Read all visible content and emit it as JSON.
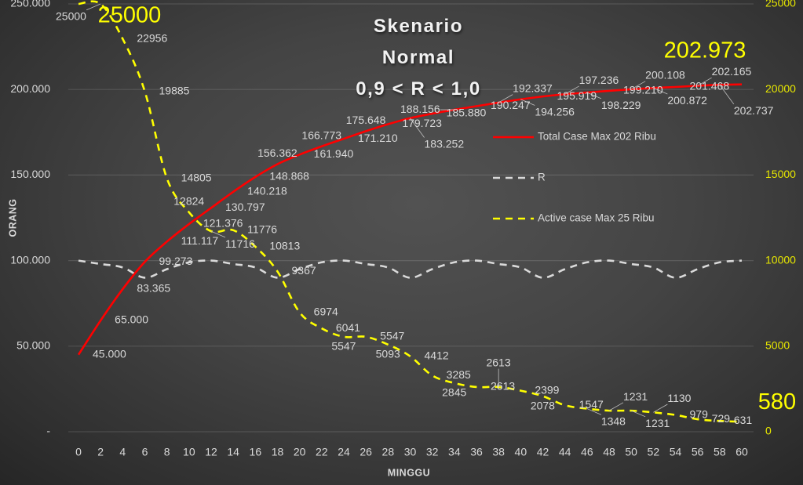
{
  "chart_data": {
    "type": "line",
    "title": [
      "Skenario",
      "Normal",
      "0,9 < R < 1,0"
    ],
    "xlabel": "MINGGU",
    "ylabel": "ORANG",
    "x": [
      0,
      2,
      4,
      6,
      8,
      10,
      12,
      14,
      16,
      18,
      20,
      22,
      24,
      26,
      28,
      30,
      32,
      34,
      36,
      38,
      40,
      42,
      44,
      46,
      48,
      50,
      52,
      54,
      56,
      58,
      60
    ],
    "xticks": [
      "0",
      "2",
      "4",
      "6",
      "8",
      "10",
      "12",
      "14",
      "16",
      "18",
      "20",
      "22",
      "24",
      "26",
      "28",
      "30",
      "32",
      "34",
      "36",
      "38",
      "40",
      "42",
      "44",
      "46",
      "48",
      "50",
      "52",
      "54",
      "56",
      "58",
      "60"
    ],
    "xlim": [
      0,
      60
    ],
    "ylim_left": [
      0,
      250000
    ],
    "ylim_right": [
      0,
      25000
    ],
    "yticks_left": [
      {
        "value": 0,
        "label": "-"
      },
      {
        "value": 50000,
        "label": "50.000"
      },
      {
        "value": 100000,
        "label": "100.000"
      },
      {
        "value": 150000,
        "label": "150.000"
      },
      {
        "value": 200000,
        "label": "200.000"
      },
      {
        "value": 250000,
        "label": "250.000"
      }
    ],
    "yticks_right": [
      {
        "value": 0,
        "label": "0"
      },
      {
        "value": 5000,
        "label": "5000"
      },
      {
        "value": 10000,
        "label": "10000"
      },
      {
        "value": 15000,
        "label": "15000"
      },
      {
        "value": 20000,
        "label": "20000"
      },
      {
        "value": 25000,
        "label": "25000"
      }
    ],
    "grid": true,
    "legend_position": "right-center",
    "series": [
      {
        "name": "Total Case Max 202 Ribu",
        "axis": "left",
        "color": "#ff0000",
        "style": "solid",
        "values": [
          45000,
          65000,
          83365,
          99273,
          111117,
          121376,
          130797,
          140218,
          148868,
          156362,
          161940,
          166773,
          171210,
          175648,
          179723,
          183252,
          185880,
          188156,
          190247,
          192337,
          194256,
          195919,
          197236,
          198229,
          199210,
          200108,
          200872,
          201468,
          202165,
          202737,
          202973
        ],
        "labels": [
          "45.000",
          "65.000",
          "83.365",
          "99.273",
          "111.117",
          "121.376",
          "130.797",
          "140.218",
          "148.868",
          "156.362",
          "161.940",
          "166.773",
          "171.210",
          "175.648",
          "179.723",
          "183.252",
          "185.880",
          "188.156",
          "190.247",
          "192.337",
          "194.256",
          "195.919",
          "197.236",
          "198.229",
          "199.210",
          "200.108",
          "200.872",
          "201.468",
          "202.165",
          "202.737",
          null
        ]
      },
      {
        "name": "R",
        "axis": "left",
        "scale": 100000,
        "color": "#d9d9d9",
        "style": "dashed",
        "values": [
          1.0,
          0.98,
          0.96,
          0.9,
          0.95,
          0.99,
          1.0,
          0.98,
          0.96,
          0.9,
          0.95,
          0.99,
          1.0,
          0.98,
          0.96,
          0.9,
          0.95,
          0.99,
          1.0,
          0.98,
          0.96,
          0.9,
          0.95,
          0.99,
          1.0,
          0.98,
          0.96,
          0.9,
          0.95,
          0.99,
          1.0
        ]
      },
      {
        "name": "Active case Max 25 Ribu",
        "axis": "right",
        "color": "#ffff00",
        "style": "dashed",
        "values": [
          25000,
          25000,
          22956,
          19885,
          14805,
          12824,
          11716,
          11776,
          10813,
          9367,
          6974,
          6041,
          5547,
          5547,
          5093,
          4412,
          3285,
          2845,
          2613,
          2613,
          2399,
          2078,
          1547,
          1348,
          1231,
          1231,
          1130,
          979,
          729,
          631,
          580
        ],
        "labels": [
          null,
          "25000",
          "22956",
          "19885",
          "14805",
          "12824",
          "11716",
          "11776",
          "10813",
          "9367",
          "6974",
          "6041",
          "5547",
          "5547",
          "5093",
          "4412",
          "3285",
          "2845",
          "2613",
          "2613",
          "2399",
          "2078",
          "1547",
          "1348",
          "1231",
          "1231",
          "1130",
          "979",
          "729",
          "631",
          null
        ]
      }
    ],
    "callouts": [
      {
        "series": 2,
        "index": 0,
        "label": "25000"
      },
      {
        "series": 0,
        "index": 30,
        "label": "202.973"
      },
      {
        "series": 2,
        "index": 30,
        "label": "580"
      }
    ]
  }
}
